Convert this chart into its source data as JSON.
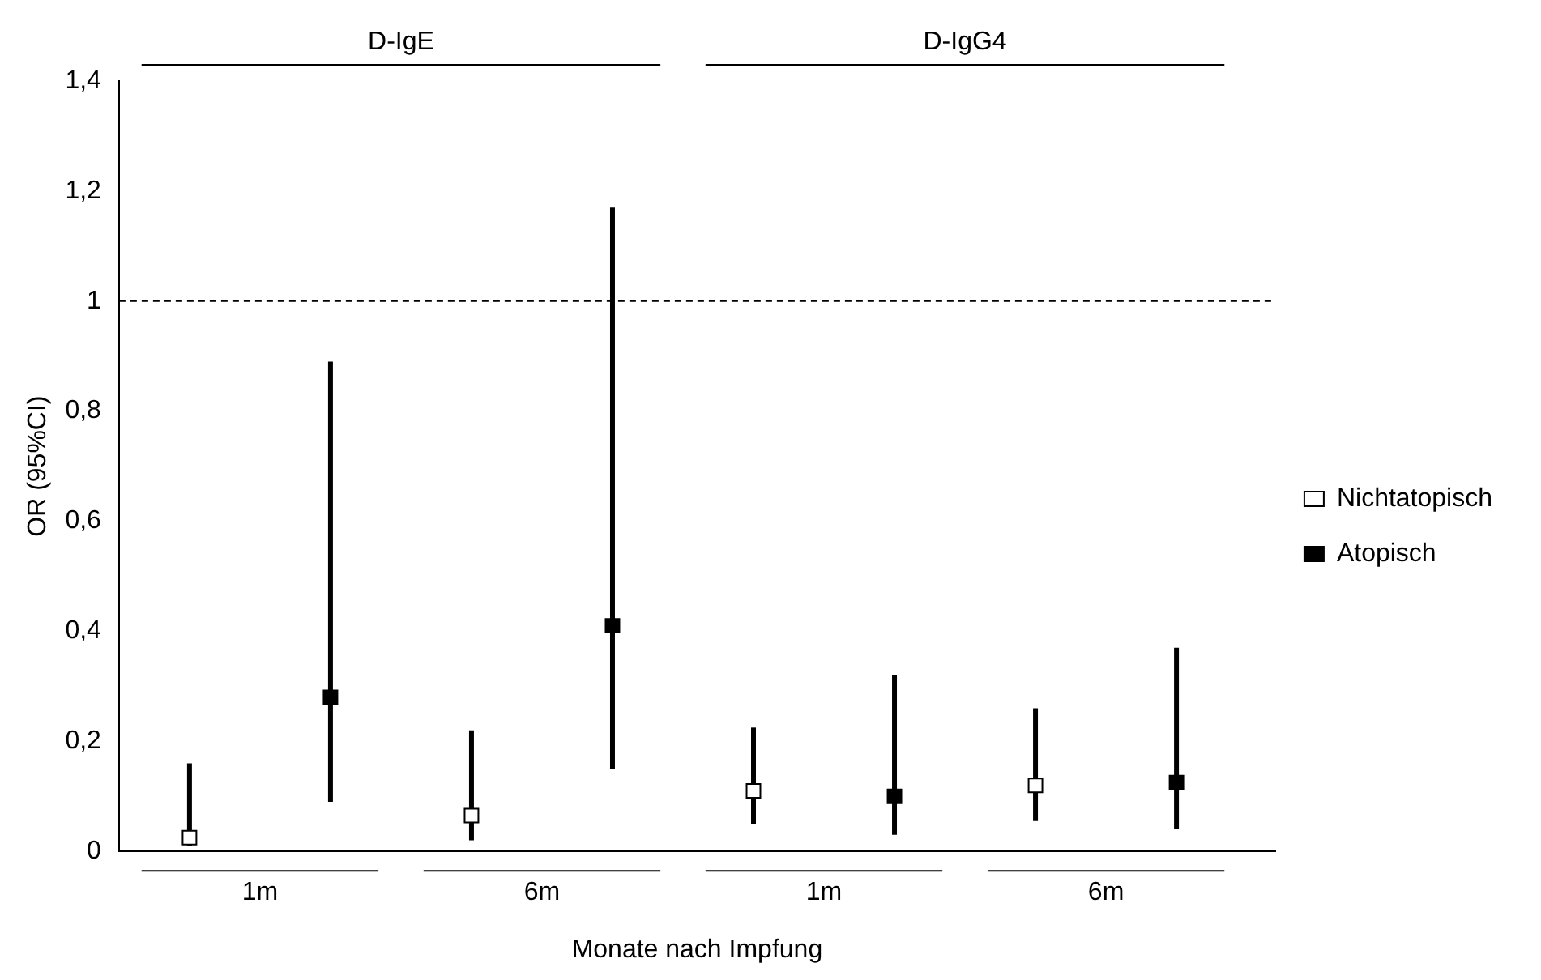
{
  "chart_data": {
    "type": "scatter",
    "xlabel": "Monate nach Impfung",
    "ylabel": "OR (95%CI)",
    "categories": [
      "1m",
      "6m",
      "1m",
      "6m"
    ],
    "series": [
      {
        "name": "Nichtatopisch",
        "color": "#ffffff",
        "values": [
          0.025,
          0.065,
          0.11,
          0.12
        ],
        "errors": [
          [
            0.01,
            0.16
          ],
          [
            0.02,
            0.22
          ],
          [
            0.05,
            0.225
          ],
          [
            0.055,
            0.26
          ]
        ]
      },
      {
        "name": "Atopisch",
        "color": "#000000",
        "values": [
          0.28,
          0.41,
          0.1,
          0.125
        ],
        "errors": [
          [
            0.09,
            0.89
          ],
          [
            0.15,
            1.17
          ],
          [
            0.03,
            0.32
          ],
          [
            0.04,
            0.37
          ]
        ]
      }
    ],
    "ylim": [
      0,
      1.4
    ],
    "yticks": [
      0,
      {
        "value": 0.2,
        "label": "0,2"
      },
      {
        "value": 0.4,
        "label": "0,4"
      },
      {
        "value": 0.6,
        "label": "0,6"
      },
      {
        "value": 0.8,
        "label": "0,8"
      },
      1,
      {
        "value": 1.2,
        "label": "1,2"
      },
      {
        "value": 1.4,
        "label": "1,4"
      }
    ],
    "ref_lines": [
      {
        "axis": "y",
        "value": 1,
        "line_style": "dashed",
        "color": "#000000"
      }
    ],
    "annotations": [
      "D-IgE",
      "D-IgG4"
    ],
    "marker": "square",
    "grid": false,
    "legend": "right"
  }
}
